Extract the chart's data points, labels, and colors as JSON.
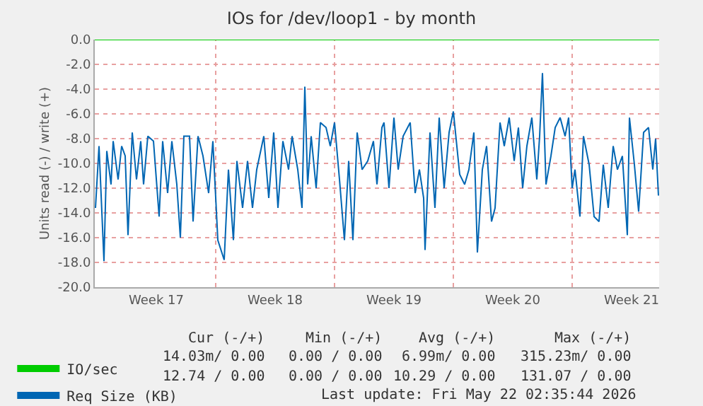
{
  "chart_data": {
    "type": "line",
    "title": "IOs for /dev/loop1 - by month",
    "ylabel": "Units read (-) / write (+)",
    "series": [
      {
        "name": "IO/sec",
        "color": "#00cc00",
        "x": [
          "2026-04-19T21:00",
          "2026-05-23T03:00"
        ],
        "values": [
          0,
          0
        ]
      },
      {
        "name": "Req Size (KB)",
        "color": "#0066b3",
        "x": [
          "2026-04-19T22:00",
          "2026-04-20T03:00",
          "2026-04-20T10:00",
          "2026-04-20T14:00",
          "2026-04-20T20:00",
          "2026-04-20T23:00",
          "2026-04-21T06:00",
          "2026-04-21T11:00",
          "2026-04-21T16:00",
          "2026-04-21T20:00",
          "2026-04-22T02:00",
          "2026-04-22T08:00",
          "2026-04-22T14:00",
          "2026-04-22T18:00",
          "2026-04-23T00:00",
          "2026-04-23T08:00",
          "2026-04-23T16:00",
          "2026-04-23T21:00",
          "2026-04-24T04:00",
          "2026-04-24T10:00",
          "2026-04-24T17:00",
          "2026-04-24T22:00",
          "2026-04-25T03:00",
          "2026-04-25T11:00",
          "2026-04-25T16:00",
          "2026-04-25T23:00",
          "2026-04-26T06:00",
          "2026-04-26T14:00",
          "2026-04-26T20:00",
          "2026-04-27T03:00",
          "2026-04-27T12:00",
          "2026-04-27T18:00",
          "2026-04-28T01:00",
          "2026-04-28T06:00",
          "2026-04-28T14:00",
          "2026-04-28T21:00",
          "2026-04-29T04:00",
          "2026-04-29T10:00",
          "2026-04-29T20:00",
          "2026-04-30T03:00",
          "2026-04-30T10:00",
          "2026-04-30T16:00",
          "2026-04-30T23:00",
          "2026-05-01T07:00",
          "2026-05-01T12:00",
          "2026-05-01T20:00",
          "2026-05-02T02:00",
          "2026-05-02T06:00",
          "2026-05-02T10:00",
          "2026-05-02T15:00",
          "2026-05-02T22:00",
          "2026-05-03T04:00",
          "2026-05-03T12:00",
          "2026-05-03T18:00",
          "2026-05-04T00:00",
          "2026-05-04T07:00",
          "2026-05-04T14:00",
          "2026-05-04T20:00",
          "2026-05-05T02:00",
          "2026-05-05T08:00",
          "2026-05-05T15:00",
          "2026-05-05T23:00",
          "2026-05-06T07:00",
          "2026-05-06T12:00",
          "2026-05-06T19:00",
          "2026-05-06T22:00",
          "2026-05-07T05:00",
          "2026-05-07T12:00",
          "2026-05-07T18:00",
          "2026-05-08T01:00",
          "2026-05-08T11:00",
          "2026-05-08T18:00",
          "2026-05-09T00:00",
          "2026-05-09T06:00",
          "2026-05-09T08:00",
          "2026-05-09T15:00",
          "2026-05-09T22:00",
          "2026-05-10T04:00",
          "2026-05-10T11:00",
          "2026-05-10T18:00",
          "2026-05-11T00:00",
          "2026-05-11T09:00",
          "2026-05-11T16:00",
          "2026-05-11T22:00",
          "2026-05-12T05:00",
          "2026-05-12T10:00",
          "2026-05-12T17:00",
          "2026-05-12T23:00",
          "2026-05-13T06:00",
          "2026-05-13T11:00",
          "2026-05-13T18:00",
          "2026-05-14T00:00",
          "2026-05-14T07:00",
          "2026-05-14T14:00",
          "2026-05-14T20:00",
          "2026-05-15T02:00",
          "2026-05-15T08:00",
          "2026-05-15T15:00",
          "2026-05-15T22:00",
          "2026-05-16T02:00",
          "2026-05-16T06:00",
          "2026-05-16T11:00",
          "2026-05-16T18:00",
          "2026-05-17T00:00",
          "2026-05-17T07:00",
          "2026-05-17T14:00",
          "2026-05-17T19:00",
          "2026-05-18T00:00",
          "2026-05-18T04:00",
          "2026-05-18T11:00",
          "2026-05-18T16:00",
          "2026-05-19T00:00",
          "2026-05-19T07:00",
          "2026-05-19T14:00",
          "2026-05-19T20:00",
          "2026-05-20T03:00",
          "2026-05-20T10:00",
          "2026-05-20T16:00",
          "2026-05-20T23:00",
          "2026-05-21T06:00",
          "2026-05-21T09:00",
          "2026-05-21T16:00",
          "2026-05-21T22:00",
          "2026-05-22T05:00",
          "2026-05-22T12:00",
          "2026-05-22T18:00",
          "2026-05-22T22:00",
          "2026-05-23T02:00"
        ],
        "values": [
          -13.6,
          -8.6,
          -17.9,
          -9.0,
          -11.7,
          -8.2,
          -11.3,
          -8.6,
          -9.4,
          -15.8,
          -7.5,
          -11.3,
          -8.2,
          -11.7,
          -7.8,
          -8.2,
          -14.3,
          -8.2,
          -12.4,
          -8.2,
          -11.7,
          -16.0,
          -7.8,
          -7.8,
          -14.7,
          -7.8,
          -9.4,
          -12.4,
          -8.2,
          -16.2,
          -17.8,
          -10.5,
          -16.2,
          -9.8,
          -13.6,
          -9.8,
          -13.6,
          -10.5,
          -7.8,
          -12.8,
          -7.5,
          -13.6,
          -8.2,
          -10.5,
          -7.8,
          -10.5,
          -13.6,
          -3.8,
          -11.7,
          -7.8,
          -12.0,
          -6.7,
          -7.1,
          -8.6,
          -6.7,
          -11.3,
          -16.2,
          -9.8,
          -16.2,
          -7.5,
          -10.5,
          -9.8,
          -8.2,
          -11.7,
          -7.1,
          -6.7,
          -12.0,
          -6.3,
          -10.5,
          -7.8,
          -6.7,
          -12.4,
          -10.5,
          -12.8,
          -17.0,
          -7.5,
          -13.6,
          -6.3,
          -12.0,
          -7.5,
          -5.8,
          -10.9,
          -11.7,
          -10.5,
          -7.5,
          -17.2,
          -10.5,
          -8.6,
          -14.7,
          -13.6,
          -6.7,
          -8.6,
          -6.3,
          -9.8,
          -7.1,
          -12.0,
          -8.6,
          -6.3,
          -11.3,
          -7.8,
          -2.7,
          -11.7,
          -9.4,
          -7.1,
          -6.3,
          -7.8,
          -6.3,
          -12.0,
          -10.5,
          -14.3,
          -7.8,
          -10.1,
          -14.3,
          -14.7,
          -10.1,
          -13.6,
          -8.6,
          -10.5,
          -9.4,
          -15.8,
          -6.3,
          -10.1,
          -13.9,
          -7.5,
          -7.1,
          -10.5,
          -8.0,
          -12.6
        ]
      }
    ],
    "xlim": [
      "2026-04-19T21:00",
      "2026-05-23T03:00"
    ],
    "xticks": [
      {
        "value": "2026-04-27",
        "label": null
      },
      {
        "value": "2026-05-04",
        "label": null
      },
      {
        "value": "2026-05-11",
        "label": null
      },
      {
        "value": "2026-05-18",
        "label": null
      },
      {
        "value": "2026-04-23T12:00",
        "label": "Week 17"
      },
      {
        "value": "2026-04-30T12:00",
        "label": "Week 18"
      },
      {
        "value": "2026-05-07T12:00",
        "label": "Week 19"
      },
      {
        "value": "2026-05-14T12:00",
        "label": "Week 20"
      },
      {
        "value": "2026-05-21T12:00",
        "label": "Week 21"
      }
    ],
    "ylim": [
      -20,
      0
    ],
    "yticks": [
      {
        "value": 0,
        "label": "0.0"
      },
      {
        "value": -2,
        "label": "-2.0"
      },
      {
        "value": -4,
        "label": "-4.0"
      },
      {
        "value": -6,
        "label": "-6.0"
      },
      {
        "value": -8,
        "label": "-8.0"
      },
      {
        "value": -10,
        "label": "-10.0"
      },
      {
        "value": -12,
        "label": "-12.0"
      },
      {
        "value": -14,
        "label": "-14.0"
      },
      {
        "value": -16,
        "label": "-16.0"
      },
      {
        "value": -18,
        "label": "-18.0"
      },
      {
        "value": -20,
        "label": "-20.0"
      }
    ],
    "grid": true,
    "legend": "bottom left",
    "marker": "none",
    "line_style": "solid",
    "annotations": [
      "Cur (-/+)",
      "Min (-/+)",
      "Avg (-/+)",
      "Max (-/+)",
      "14.03m/ 0.00",
      "0.00 / 0.00",
      "6.99m/ 0.00",
      "315.23m/ 0.00",
      "12.74 / 0.00",
      "0.00 / 0.00",
      "10.29 / 0.00",
      "131.07 / 0.00",
      "Last update: Fri May 22 02:35:44 2026"
    ]
  }
}
